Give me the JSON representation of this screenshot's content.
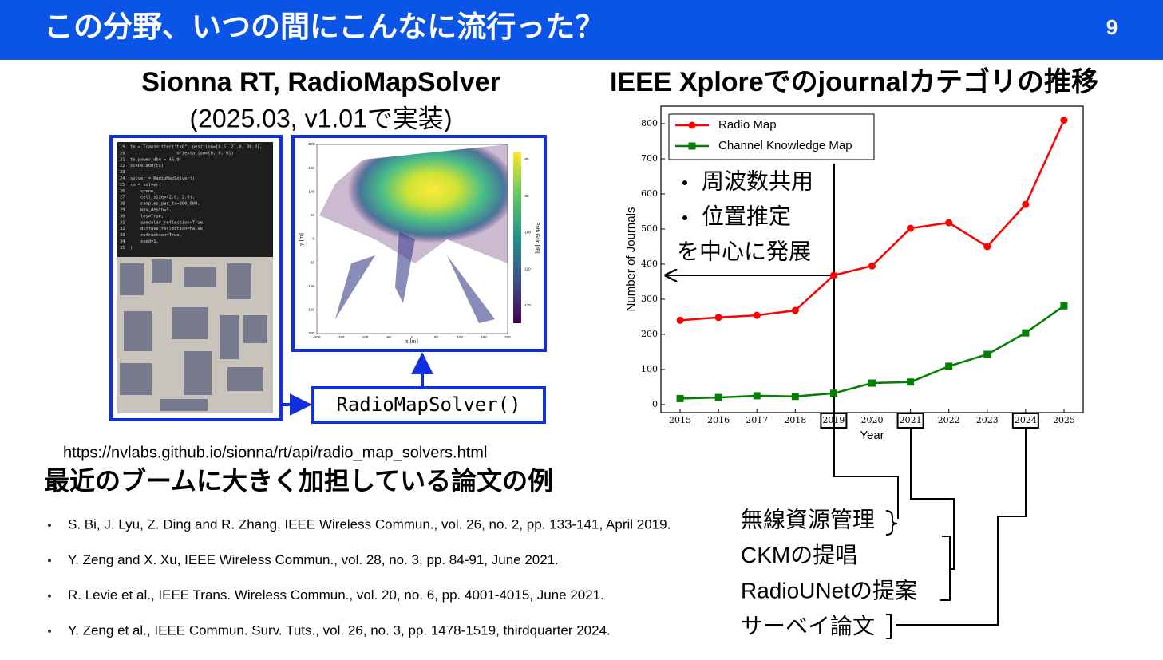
{
  "header": {
    "title": "この分野、いつの間にこんなに流行った？",
    "page_number": "9"
  },
  "left_panel": {
    "heading": "Sionna RT, RadioMapSolver",
    "subheading": "(2025.03, v1.01で実装)",
    "code": {
      "lines": [
        "19  tx = Transmitter(\"tx0\", position=[8.5, 21.0, 30.0],",
        "20                    orientation=[0, 0, 0])",
        "21  tx.power_dbm = 46.0",
        "22  scene.add(tx)",
        "23",
        "24  solver = RadioMapSolver()",
        "25  rm = solver(",
        "26      scene,",
        "27      cell_size=(2.0, 2.0),",
        "28      samples_per_tx=200_000,",
        "29      max_depth=5,",
        "30      los=True,",
        "31      specular_reflection=True,",
        "32      diffuse_reflection=False,",
        "33      refraction=True,",
        "34      seed=1,",
        "35  )"
      ]
    },
    "radio_map": {
      "x_label": "x [m]",
      "y_label": "y [m]",
      "colorbar_label": "Path Gain [dB]",
      "xticks": [
        -200,
        -150,
        -100,
        -50,
        0,
        50,
        100,
        150,
        200
      ],
      "yticks": [
        -200,
        -150,
        -100,
        -50,
        0,
        50,
        100,
        150,
        200
      ],
      "colorbar_ticks": [
        -80,
        -90,
        -100,
        -110,
        -120
      ]
    },
    "solver_label": "RadioMapSolver()",
    "url": "https://nvlabs.github.io/sionna/rt/api/radio_map_solvers.html"
  },
  "papers": {
    "title": "最近のブームに大きく加担している論文の例",
    "items": [
      "S. Bi, J. Lyu, Z. Ding and R. Zhang,  IEEE Wireless Commun., vol. 26, no. 2, pp. 133-141, April 2019.",
      "Y. Zeng and X. Xu, IEEE Wireless Commun., vol. 28, no. 3, pp. 84-91, June 2021.",
      "R. Levie et al., IEEE Trans. Wireless Commun., vol. 20, no. 6, pp. 4001-4015, June 2021.",
      "Y. Zeng et al., IEEE Commun. Surv. Tuts., vol. 26, no. 3, pp. 1478-1519, thirdquarter 2024."
    ]
  },
  "chart_data": {
    "type": "line",
    "title": "IEEE Xploreでのjournalカテゴリの推移",
    "x": [
      2015,
      2016,
      2017,
      2018,
      2019,
      2020,
      2021,
      2022,
      2023,
      2024,
      2025
    ],
    "series": [
      {
        "name": "Radio Map",
        "color": "#ff0000",
        "marker": "circle",
        "values": [
          240,
          248,
          254,
          268,
          368,
          395,
          502,
          518,
          450,
          570,
          810
        ]
      },
      {
        "name": "Channel Knowledge Map",
        "color": "#008000",
        "marker": "square",
        "values": [
          17,
          20,
          25,
          23,
          32,
          61,
          64,
          109,
          143,
          204,
          281
        ]
      }
    ],
    "xlim": [
      2014.5,
      2025.5
    ],
    "ylim": [
      -23,
      850
    ],
    "xticks": [
      2015,
      2016,
      2017,
      2018,
      2019,
      2020,
      2021,
      2022,
      2023,
      2024,
      2025
    ],
    "yticks": [
      0,
      100,
      200,
      300,
      400,
      500,
      600,
      700,
      800
    ],
    "x_label": "Year",
    "y_label": "Number of Journals",
    "legend": "upper left",
    "boxed_xticks": [
      2019,
      2021,
      2024
    ],
    "annotations": [
      "周波数共用",
      "位置推定",
      "を中心に発展"
    ]
  },
  "milestones": [
    "無線資源管理",
    "CKMの提唱",
    "RadioUNetの提案",
    "サーベイ論文"
  ]
}
